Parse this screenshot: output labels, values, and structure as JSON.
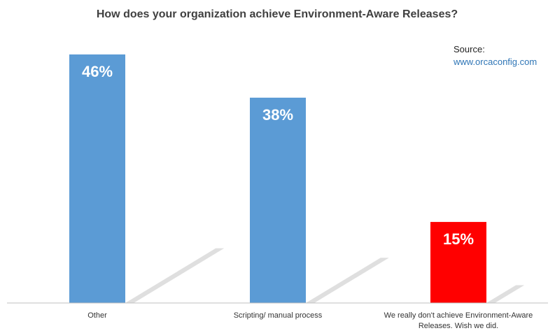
{
  "source": {
    "label": "Source:",
    "link": "www.orcaconfig.com",
    "link_color": "#2e75b6"
  },
  "colors": {
    "default_bar": "#5b9bd5",
    "highlight_bar": "#ff0000",
    "shadow": "#d9d9d9",
    "axis": "#bfbfbf"
  },
  "chart_data": {
    "type": "bar",
    "title": "How does your organization achieve Environment-Aware Releases?",
    "categories": [
      [
        "Other"
      ],
      [
        "Scripting/ manual process"
      ],
      [
        "We really don't achieve Environment-Aware",
        "Releases. Wish we did."
      ]
    ],
    "values": [
      46,
      38,
      15
    ],
    "data_labels": [
      "46%",
      "38%",
      "15%"
    ],
    "bar_colors": [
      "#5b9bd5",
      "#5b9bd5",
      "#ff0000"
    ],
    "ylim": [
      0,
      46
    ],
    "grid": false,
    "legend": "none",
    "xlabel": "",
    "ylabel": ""
  }
}
